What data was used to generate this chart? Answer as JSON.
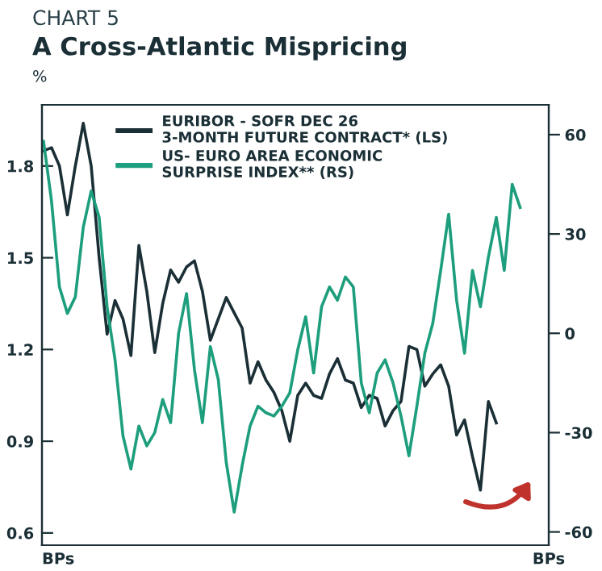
{
  "chart_data": {
    "type": "line",
    "title": "A Cross-Atlantic Mispricing",
    "ylabel": "%",
    "y2label": "BPs",
    "annotations": [
      "CHART 5",
      "BPs"
    ],
    "categories": [
      null,
      null,
      null,
      null,
      null,
      null,
      null,
      null,
      null,
      null,
      null,
      null,
      null,
      null,
      null,
      null,
      null,
      null,
      null,
      null,
      null,
      null,
      null,
      null,
      null,
      null,
      null,
      null,
      null,
      null,
      null,
      null,
      null,
      null,
      null,
      null,
      null,
      null,
      null,
      null,
      null,
      null,
      null,
      null,
      null,
      null,
      null,
      null,
      null,
      null,
      null,
      null,
      null,
      null,
      null,
      null,
      null,
      null,
      null,
      null,
      null
    ],
    "series": [
      {
        "name": "EURIBOR - SOFR DEC 26\n3-MONTH FUTURE CONTRACT* (LS)",
        "color": "#1b2f36",
        "values": [
          1.85,
          1.86,
          1.8,
          1.64,
          1.8,
          1.94,
          1.8,
          1.5,
          1.25,
          1.36,
          1.3,
          1.18,
          1.54,
          1.39,
          1.19,
          1.35,
          1.46,
          1.42,
          1.47,
          1.49,
          1.39,
          1.23,
          1.3,
          1.37,
          1.32,
          1.27,
          1.09,
          1.16,
          1.1,
          1.06,
          1.0,
          0.9,
          1.05,
          1.09,
          1.05,
          1.04,
          1.12,
          1.17,
          1.1,
          1.09,
          1.01,
          1.05,
          1.04,
          0.95,
          1.0,
          1.03,
          1.21,
          1.2,
          1.08,
          1.12,
          1.15,
          1.08,
          0.92,
          0.97,
          0.85,
          0.74,
          1.03,
          0.96,
          null,
          null,
          null
        ]
      },
      {
        "name": "US- EURO AREA ECONOMIC\nSURPRISE INDEX** (RS)",
        "color": "#1d9e7c",
        "axis": "y2",
        "values": [
          58,
          40,
          14,
          6,
          11,
          32,
          43,
          35,
          8,
          -8,
          -31,
          -41,
          -28,
          -34,
          -30,
          -20,
          -27,
          0,
          12,
          -11,
          -27,
          -4,
          -14,
          -39,
          -54,
          -40,
          -28,
          -22,
          -24,
          -25,
          -22,
          -18,
          -5,
          5,
          -12,
          8,
          14,
          10,
          17,
          14,
          -15,
          -24,
          -12,
          -8,
          -15,
          -25,
          -37,
          -22,
          -6,
          3,
          19,
          36,
          10,
          -6,
          19,
          8,
          23,
          35,
          19,
          45,
          38
        ]
      }
    ],
    "ylim": [
      0.56,
      2.0
    ],
    "yticks": [
      0.6,
      0.9,
      1.2,
      1.5,
      1.8
    ],
    "y2lim": [
      -64,
      69
    ],
    "y2ticks": [
      -60,
      -30,
      0,
      30,
      60
    ],
    "legend": "top left",
    "grid": false,
    "line_style": "solid",
    "marker": "none"
  }
}
